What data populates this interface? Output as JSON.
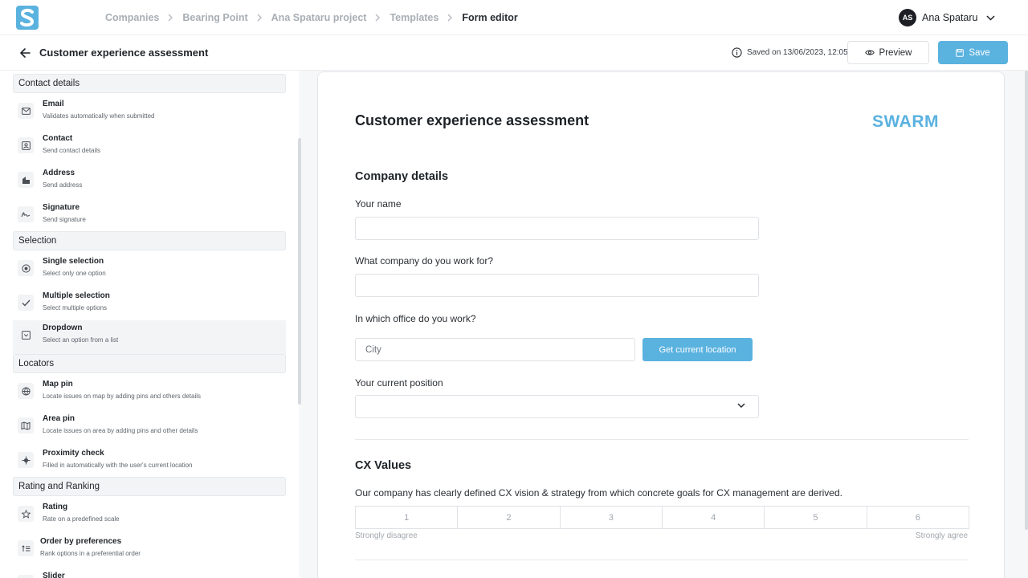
{
  "colors": {
    "accent": "#5ab2df",
    "text": "#1f2328",
    "muted": "#a9aeb5"
  },
  "breadcrumb": [
    "Companies",
    "Bearing Point",
    "Ana Spataru project",
    "Templates",
    "Form editor"
  ],
  "user": {
    "initials": "AS",
    "name": "Ana Spataru"
  },
  "header": {
    "title": "Customer experience assessment",
    "saved": "Saved on 13/06/2023, 12:05",
    "preview_label": "Preview",
    "save_label": "Save"
  },
  "sidebar": {
    "sections": [
      {
        "title": "Contact details"
      },
      {
        "title": "Selection"
      },
      {
        "title": "Locators"
      },
      {
        "title": "Rating and Ranking"
      }
    ],
    "items": [
      {
        "label": "Email",
        "desc": "Validates automatically when submitted",
        "icon": "mail-icon"
      },
      {
        "label": "Contact",
        "desc": "Send contact details",
        "icon": "contact-card-icon"
      },
      {
        "label": "Address",
        "desc": "Send address",
        "icon": "building-icon"
      },
      {
        "label": "Signature",
        "desc": "Send signature",
        "icon": "signature-icon"
      },
      {
        "label": "Single selection",
        "desc": "Select only one option",
        "icon": "radio-icon"
      },
      {
        "label": "Multiple selection",
        "desc": "Select multiple options",
        "icon": "check-icon"
      },
      {
        "label": "Dropdown",
        "desc": "Select an option from a list",
        "icon": "dropdown-icon"
      },
      {
        "label": "Map pin",
        "desc": "Locate issues on map by adding pins and others details",
        "icon": "globe-icon"
      },
      {
        "label": "Area pin",
        "desc": "Locate issues on area by adding pins and other details",
        "icon": "area-map-icon"
      },
      {
        "label": "Proximity check",
        "desc": "Filled in automatically with the user's current location",
        "icon": "crosshair-icon"
      },
      {
        "label": "Rating",
        "desc": "Rate on a predefined scale",
        "icon": "star-icon"
      },
      {
        "label": "Order by preferences",
        "desc": "Rank options in a preferential order",
        "icon": "sort-icon"
      },
      {
        "label": "Slider",
        "desc": "",
        "icon": "slider-icon"
      }
    ]
  },
  "form": {
    "title": "Customer experience assessment",
    "brand": "SWARM",
    "section1": "Company details",
    "q1": "Your name",
    "q2": "What company do you work for?",
    "q3": "In which office do you work?",
    "city_placeholder": "City",
    "location_button": "Get current location",
    "q4": "Your current position",
    "section2": "CX Values",
    "q5": "Our company has clearly defined CX vision & strategy from which concrete goals for CX management are derived.",
    "scale": [
      "1",
      "2",
      "3",
      "4",
      "5",
      "6"
    ],
    "scale_low": "Strongly disagree",
    "scale_high": "Strongly agree"
  }
}
